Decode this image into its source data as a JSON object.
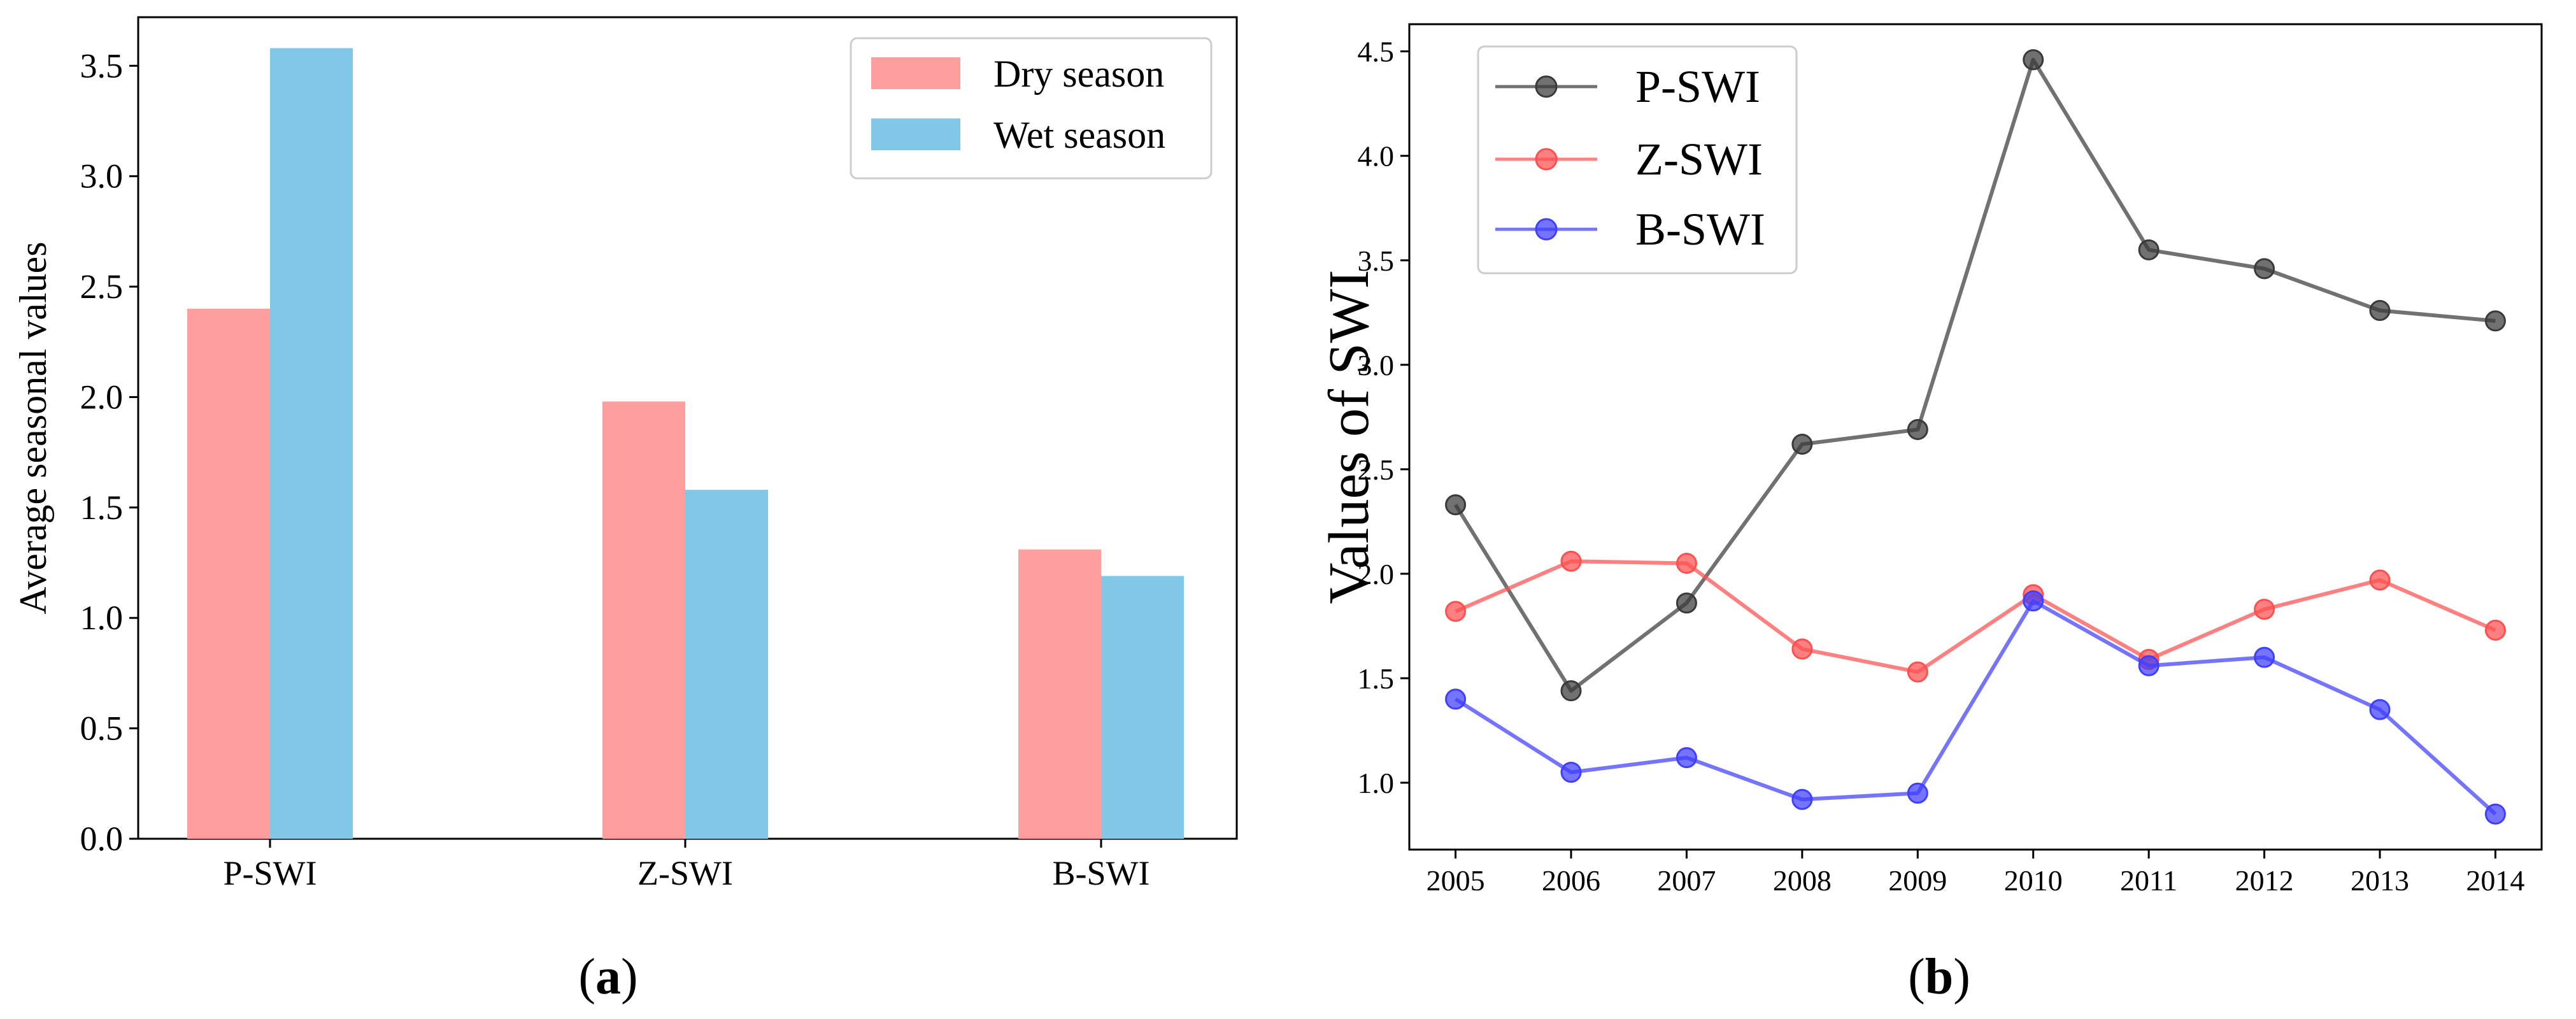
{
  "chart_data": [
    {
      "type": "bar",
      "panel_label": "a",
      "categories": [
        "P-SWI",
        "Z-SWI",
        "B-SWI"
      ],
      "series": [
        {
          "name": "Dry season",
          "color": "#ff9e9e",
          "values": [
            2.4,
            1.98,
            1.31
          ]
        },
        {
          "name": "Wet season",
          "color": "#82c7e6",
          "values": [
            3.58,
            1.58,
            1.19
          ]
        }
      ],
      "ylabel": "Average seasonal values",
      "xlabel": "",
      "ylim": [
        0,
        3.72
      ],
      "yticks": [
        0.0,
        0.5,
        1.0,
        1.5,
        2.0,
        2.5,
        3.0,
        3.5
      ],
      "ytick_labels": [
        "0.0",
        "0.5",
        "1.0",
        "1.5",
        "2.0",
        "2.5",
        "3.0",
        "3.5"
      ],
      "grid": false,
      "legend_position": "top-right"
    },
    {
      "type": "line",
      "panel_label": "b",
      "x": [
        2005,
        2006,
        2007,
        2008,
        2009,
        2010,
        2011,
        2012,
        2013,
        2014
      ],
      "xtick_labels": [
        "2005",
        "2006",
        "2007",
        "2008",
        "2009",
        "2010",
        "2011",
        "2012",
        "2013",
        "2014"
      ],
      "series": [
        {
          "name": "P-SWI",
          "color": "#3a3a3a",
          "values": [
            2.33,
            1.44,
            1.86,
            2.62,
            2.69,
            4.46,
            3.55,
            3.46,
            3.26,
            3.21
          ]
        },
        {
          "name": "Z-SWI",
          "color": "#ff4f4f",
          "values": [
            1.82,
            2.06,
            2.05,
            1.64,
            1.53,
            1.9,
            1.59,
            1.83,
            1.97,
            1.73
          ]
        },
        {
          "name": "B-SWI",
          "color": "#3f3fff",
          "values": [
            1.4,
            1.05,
            1.12,
            0.92,
            0.95,
            1.87,
            1.56,
            1.6,
            1.35,
            0.85
          ]
        }
      ],
      "ylabel": "Values of SWI",
      "xlabel": "",
      "xlim": [
        2004.6,
        2014.4
      ],
      "ylim": [
        0.68,
        4.63
      ],
      "yticks": [
        1.0,
        1.5,
        2.0,
        2.5,
        3.0,
        3.5,
        4.0,
        4.5
      ],
      "ytick_labels": [
        "1.0",
        "1.5",
        "2.0",
        "2.5",
        "3.0",
        "3.5",
        "4.0",
        "4.5"
      ],
      "grid": false,
      "legend_position": "top-left"
    }
  ]
}
